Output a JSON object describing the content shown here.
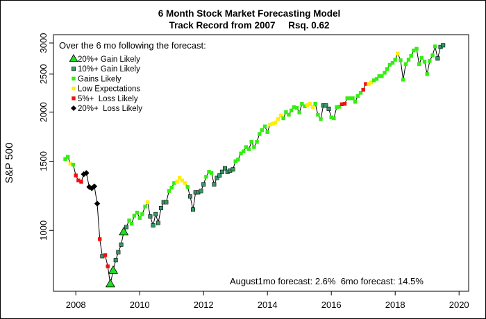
{
  "chart_data": {
    "type": "line",
    "title": "6 Month Stock Market Forecasting Model",
    "subtitle": "Track Record from 2007     Rsq. 0.62",
    "ylabel": "S&P 500",
    "xlabel": "",
    "y_scale": "log",
    "xlim": [
      2007.3,
      2020.3
    ],
    "ylim": [
      700,
      3150
    ],
    "x_ticks": [
      2008,
      2010,
      2012,
      2014,
      2016,
      2018,
      2020
    ],
    "x_tick_labels": [
      "2008",
      "2010",
      "2012",
      "2014",
      "2016",
      "2018",
      "2020"
    ],
    "y_ticks": [
      1000,
      1500,
      2000,
      2500,
      3000
    ],
    "y_tick_labels": [
      "1000",
      "1500",
      "2000",
      "2500",
      "3000"
    ],
    "legend": {
      "placement": "top-left",
      "title": "Over the 6 mo following the forecast:",
      "entries": [
        {
          "key": "gain20",
          "label": "20%+ Gain Likely",
          "marker": "triangle",
          "color": "#22dd22"
        },
        {
          "key": "gain10",
          "label": "10%+ Gain Likely",
          "marker": "square",
          "color": "#339966"
        },
        {
          "key": "gains",
          "label": "Gains Likely",
          "marker": "square",
          "color": "#33ee11"
        },
        {
          "key": "low",
          "label": "Low Expectations",
          "marker": "square",
          "color": "#ffee00"
        },
        {
          "key": "loss5",
          "label": "5%+  Loss Likely",
          "marker": "square",
          "color": "#ee1111"
        },
        {
          "key": "loss20",
          "label": "20%+  Loss Likely",
          "marker": "diamond",
          "color": "#000000"
        }
      ]
    },
    "annotation": "August1mo forecast: 2.6%  6mo forecast: 14.5%",
    "series": [
      {
        "name": "S&P 500 monthly forecasts",
        "points": [
          {
            "x": 2007.67,
            "y": 1520,
            "c": "gains"
          },
          {
            "x": 2007.75,
            "y": 1540,
            "c": "gains"
          },
          {
            "x": 2007.83,
            "y": 1480,
            "c": "low"
          },
          {
            "x": 2007.92,
            "y": 1470,
            "c": "gains"
          },
          {
            "x": 2008.0,
            "y": 1380,
            "c": "loss5"
          },
          {
            "x": 2008.08,
            "y": 1340,
            "c": "loss5"
          },
          {
            "x": 2008.17,
            "y": 1330,
            "c": "loss5"
          },
          {
            "x": 2008.25,
            "y": 1390,
            "c": "loss20"
          },
          {
            "x": 2008.33,
            "y": 1400,
            "c": "loss20"
          },
          {
            "x": 2008.42,
            "y": 1290,
            "c": "loss20"
          },
          {
            "x": 2008.5,
            "y": 1280,
            "c": "loss20"
          },
          {
            "x": 2008.58,
            "y": 1295,
            "c": "loss20"
          },
          {
            "x": 2008.67,
            "y": 1170,
            "c": "loss20"
          },
          {
            "x": 2008.75,
            "y": 950,
            "c": "loss5"
          },
          {
            "x": 2008.83,
            "y": 860,
            "c": "gain10"
          },
          {
            "x": 2008.92,
            "y": 865,
            "c": "loss5"
          },
          {
            "x": 2009.0,
            "y": 810,
            "c": "loss5"
          },
          {
            "x": 2009.08,
            "y": 730,
            "c": "gain20"
          },
          {
            "x": 2009.17,
            "y": 790,
            "c": "gain20"
          },
          {
            "x": 2009.25,
            "y": 840,
            "c": "gain10"
          },
          {
            "x": 2009.33,
            "y": 880,
            "c": "gain10"
          },
          {
            "x": 2009.42,
            "y": 920,
            "c": "gain10"
          },
          {
            "x": 2009.5,
            "y": 990,
            "c": "gain20"
          },
          {
            "x": 2009.58,
            "y": 1020,
            "c": "gain10"
          },
          {
            "x": 2009.67,
            "y": 1060,
            "c": "gains"
          },
          {
            "x": 2009.75,
            "y": 1040,
            "c": "gains"
          },
          {
            "x": 2009.83,
            "y": 1090,
            "c": "gains"
          },
          {
            "x": 2009.92,
            "y": 1110,
            "c": "gains"
          },
          {
            "x": 2010.0,
            "y": 1075,
            "c": "gains"
          },
          {
            "x": 2010.08,
            "y": 1100,
            "c": "gains"
          },
          {
            "x": 2010.17,
            "y": 1150,
            "c": "gains"
          },
          {
            "x": 2010.25,
            "y": 1180,
            "c": "low"
          },
          {
            "x": 2010.33,
            "y": 1085,
            "c": "gain10"
          },
          {
            "x": 2010.42,
            "y": 1030,
            "c": "gain10"
          },
          {
            "x": 2010.5,
            "y": 1100,
            "c": "gain10"
          },
          {
            "x": 2010.58,
            "y": 1045,
            "c": "gain10"
          },
          {
            "x": 2010.67,
            "y": 1140,
            "c": "gain10"
          },
          {
            "x": 2010.75,
            "y": 1180,
            "c": "gain10"
          },
          {
            "x": 2010.83,
            "y": 1180,
            "c": "gain10"
          },
          {
            "x": 2010.92,
            "y": 1260,
            "c": "gains"
          },
          {
            "x": 2011.0,
            "y": 1285,
            "c": "gains"
          },
          {
            "x": 2011.08,
            "y": 1320,
            "c": "gains"
          },
          {
            "x": 2011.17,
            "y": 1330,
            "c": "low"
          },
          {
            "x": 2011.25,
            "y": 1360,
            "c": "low"
          },
          {
            "x": 2011.33,
            "y": 1340,
            "c": "low"
          },
          {
            "x": 2011.42,
            "y": 1320,
            "c": "low"
          },
          {
            "x": 2011.5,
            "y": 1290,
            "c": "gains"
          },
          {
            "x": 2011.58,
            "y": 1220,
            "c": "gain10"
          },
          {
            "x": 2011.67,
            "y": 1130,
            "c": "gain10"
          },
          {
            "x": 2011.75,
            "y": 1250,
            "c": "gain10"
          },
          {
            "x": 2011.83,
            "y": 1250,
            "c": "gain10"
          },
          {
            "x": 2011.92,
            "y": 1260,
            "c": "gain10"
          },
          {
            "x": 2012.0,
            "y": 1310,
            "c": "gain10"
          },
          {
            "x": 2012.08,
            "y": 1370,
            "c": "gains"
          },
          {
            "x": 2012.17,
            "y": 1410,
            "c": "gains"
          },
          {
            "x": 2012.25,
            "y": 1400,
            "c": "gains"
          },
          {
            "x": 2012.33,
            "y": 1310,
            "c": "gain10"
          },
          {
            "x": 2012.42,
            "y": 1360,
            "c": "gain10"
          },
          {
            "x": 2012.5,
            "y": 1380,
            "c": "gain10"
          },
          {
            "x": 2012.58,
            "y": 1410,
            "c": "gain10"
          },
          {
            "x": 2012.67,
            "y": 1440,
            "c": "gain10"
          },
          {
            "x": 2012.75,
            "y": 1410,
            "c": "gain10"
          },
          {
            "x": 2012.83,
            "y": 1420,
            "c": "gain10"
          },
          {
            "x": 2012.92,
            "y": 1430,
            "c": "gain10"
          },
          {
            "x": 2013.0,
            "y": 1500,
            "c": "gains"
          },
          {
            "x": 2013.08,
            "y": 1515,
            "c": "gains"
          },
          {
            "x": 2013.17,
            "y": 1570,
            "c": "gains"
          },
          {
            "x": 2013.25,
            "y": 1590,
            "c": "gains"
          },
          {
            "x": 2013.33,
            "y": 1630,
            "c": "gains"
          },
          {
            "x": 2013.42,
            "y": 1610,
            "c": "gains"
          },
          {
            "x": 2013.5,
            "y": 1680,
            "c": "gains"
          },
          {
            "x": 2013.58,
            "y": 1630,
            "c": "gains"
          },
          {
            "x": 2013.67,
            "y": 1680,
            "c": "gains"
          },
          {
            "x": 2013.75,
            "y": 1760,
            "c": "gains"
          },
          {
            "x": 2013.83,
            "y": 1800,
            "c": "gains"
          },
          {
            "x": 2013.92,
            "y": 1840,
            "c": "gains"
          },
          {
            "x": 2014.0,
            "y": 1780,
            "c": "gains"
          },
          {
            "x": 2014.08,
            "y": 1860,
            "c": "low"
          },
          {
            "x": 2014.17,
            "y": 1870,
            "c": "low"
          },
          {
            "x": 2014.25,
            "y": 1880,
            "c": "low"
          },
          {
            "x": 2014.33,
            "y": 1920,
            "c": "low"
          },
          {
            "x": 2014.42,
            "y": 1960,
            "c": "low"
          },
          {
            "x": 2014.5,
            "y": 1930,
            "c": "gains"
          },
          {
            "x": 2014.58,
            "y": 2000,
            "c": "gains"
          },
          {
            "x": 2014.67,
            "y": 1970,
            "c": "gains"
          },
          {
            "x": 2014.75,
            "y": 2020,
            "c": "gains"
          },
          {
            "x": 2014.83,
            "y": 2060,
            "c": "gains"
          },
          {
            "x": 2014.92,
            "y": 2050,
            "c": "gains"
          },
          {
            "x": 2015.0,
            "y": 1995,
            "c": "gains"
          },
          {
            "x": 2015.08,
            "y": 2100,
            "c": "gains"
          },
          {
            "x": 2015.17,
            "y": 2070,
            "c": "gains"
          },
          {
            "x": 2015.25,
            "y": 2085,
            "c": "low"
          },
          {
            "x": 2015.33,
            "y": 2100,
            "c": "low"
          },
          {
            "x": 2015.42,
            "y": 2060,
            "c": "low"
          },
          {
            "x": 2015.5,
            "y": 2100,
            "c": "gains"
          },
          {
            "x": 2015.58,
            "y": 1970,
            "c": "gains"
          },
          {
            "x": 2015.67,
            "y": 1920,
            "c": "gains"
          },
          {
            "x": 2015.75,
            "y": 2080,
            "c": "gain10"
          },
          {
            "x": 2015.83,
            "y": 2080,
            "c": "gain10"
          },
          {
            "x": 2015.92,
            "y": 2040,
            "c": "gain10"
          },
          {
            "x": 2016.0,
            "y": 1940,
            "c": "gains"
          },
          {
            "x": 2016.08,
            "y": 1930,
            "c": "gains"
          },
          {
            "x": 2016.17,
            "y": 2060,
            "c": "gains"
          },
          {
            "x": 2016.25,
            "y": 2065,
            "c": "gains"
          },
          {
            "x": 2016.33,
            "y": 2095,
            "c": "loss5"
          },
          {
            "x": 2016.42,
            "y": 2100,
            "c": "loss5"
          },
          {
            "x": 2016.5,
            "y": 2170,
            "c": "gains"
          },
          {
            "x": 2016.58,
            "y": 2170,
            "c": "gains"
          },
          {
            "x": 2016.67,
            "y": 2170,
            "c": "gains"
          },
          {
            "x": 2016.75,
            "y": 2125,
            "c": "gains"
          },
          {
            "x": 2016.83,
            "y": 2200,
            "c": "gains"
          },
          {
            "x": 2016.92,
            "y": 2240,
            "c": "gains"
          },
          {
            "x": 2017.0,
            "y": 2280,
            "c": "loss5"
          },
          {
            "x": 2017.08,
            "y": 2360,
            "c": "loss5"
          },
          {
            "x": 2017.17,
            "y": 2360,
            "c": "low"
          },
          {
            "x": 2017.25,
            "y": 2380,
            "c": "low"
          },
          {
            "x": 2017.33,
            "y": 2410,
            "c": "gains"
          },
          {
            "x": 2017.42,
            "y": 2430,
            "c": "gains"
          },
          {
            "x": 2017.5,
            "y": 2470,
            "c": "gains"
          },
          {
            "x": 2017.58,
            "y": 2470,
            "c": "gains"
          },
          {
            "x": 2017.67,
            "y": 2520,
            "c": "gains"
          },
          {
            "x": 2017.75,
            "y": 2575,
            "c": "gains"
          },
          {
            "x": 2017.83,
            "y": 2640,
            "c": "gains"
          },
          {
            "x": 2017.92,
            "y": 2670,
            "c": "gains"
          },
          {
            "x": 2018.0,
            "y": 2720,
            "c": "gains"
          },
          {
            "x": 2018.08,
            "y": 2820,
            "c": "low"
          },
          {
            "x": 2018.17,
            "y": 2710,
            "c": "gains"
          },
          {
            "x": 2018.25,
            "y": 2420,
            "c": "gains"
          },
          {
            "x": 2018.33,
            "y": 2650,
            "c": "gains"
          },
          {
            "x": 2018.42,
            "y": 2720,
            "c": "gains"
          },
          {
            "x": 2018.5,
            "y": 2780,
            "c": "gains"
          },
          {
            "x": 2018.58,
            "y": 2870,
            "c": "gains"
          },
          {
            "x": 2018.67,
            "y": 2900,
            "c": "gains"
          },
          {
            "x": 2018.75,
            "y": 2650,
            "c": "gains"
          },
          {
            "x": 2018.83,
            "y": 2750,
            "c": "gains"
          },
          {
            "x": 2018.92,
            "y": 2690,
            "c": "gains"
          },
          {
            "x": 2019.0,
            "y": 2500,
            "c": "gains"
          },
          {
            "x": 2019.08,
            "y": 2700,
            "c": "gains"
          },
          {
            "x": 2019.17,
            "y": 2790,
            "c": "gains"
          },
          {
            "x": 2019.25,
            "y": 2940,
            "c": "gains"
          },
          {
            "x": 2019.33,
            "y": 2740,
            "c": "gain10"
          },
          {
            "x": 2019.42,
            "y": 2930,
            "c": "gain10"
          },
          {
            "x": 2019.5,
            "y": 2960,
            "c": "gain10"
          }
        ]
      }
    ]
  }
}
